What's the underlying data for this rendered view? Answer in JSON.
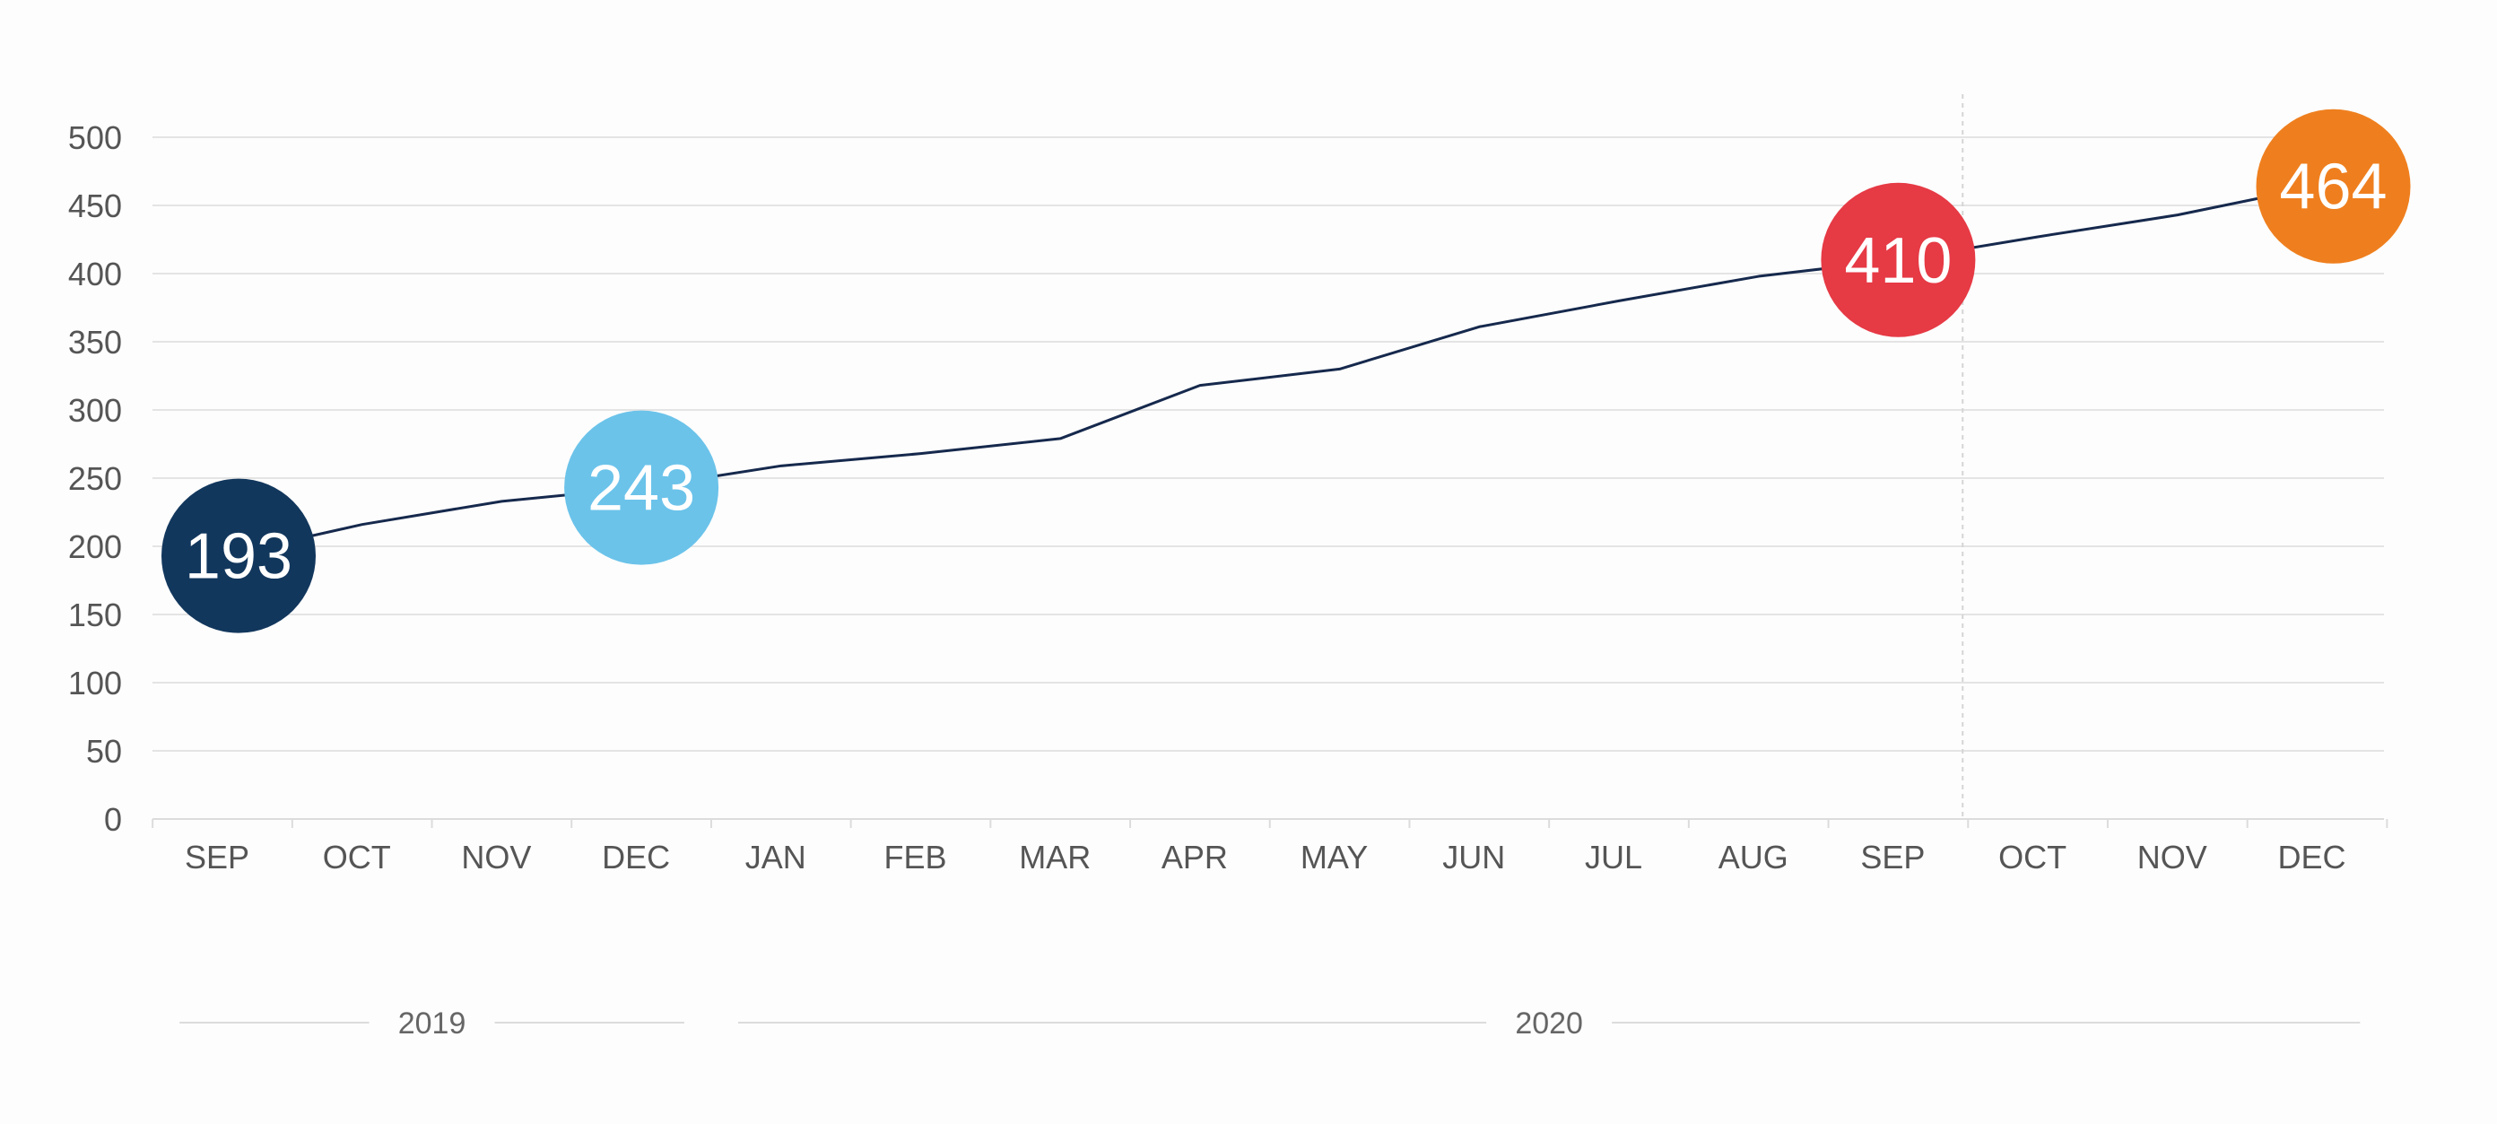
{
  "chart_data": {
    "type": "line",
    "title": "",
    "xlabel": "",
    "ylabel": "",
    "ylim": [
      0,
      500
    ],
    "y_ticks": [
      "0",
      "50",
      "100",
      "150",
      "200",
      "250",
      "300",
      "350",
      "400",
      "450",
      "500"
    ],
    "categories": [
      "SEP",
      "OCT",
      "NOV",
      "DEC",
      "JAN",
      "FEB",
      "MAR",
      "APR",
      "MAY",
      "JUN",
      "JUL",
      "AUG",
      "SEP",
      "OCT",
      "NOV",
      "DEC"
    ],
    "series": [
      {
        "values": [
          193,
          216,
          233,
          243,
          259,
          268,
          279,
          318,
          330,
          361,
          380,
          398,
          410,
          427,
          443,
          464
        ],
        "color": "#16294d"
      }
    ],
    "highlights": [
      {
        "index": 0,
        "label": "193",
        "color": "#12375d"
      },
      {
        "index": 3,
        "label": "243",
        "color": "#6bc3ea"
      },
      {
        "index": 12,
        "label": "410",
        "color": "#e63a45"
      },
      {
        "index": 15,
        "label": "464",
        "color": "#ef7f1e"
      }
    ],
    "year_groups": [
      {
        "label": "2019",
        "start": 0,
        "end": 3
      },
      {
        "label": "2020",
        "start": 4,
        "end": 15
      }
    ],
    "forecast_divider_after": 12,
    "grid": true,
    "colors": {
      "grid": "#dcdcdc",
      "axis_text": "#555555",
      "divider": "#d5d5d5"
    }
  }
}
